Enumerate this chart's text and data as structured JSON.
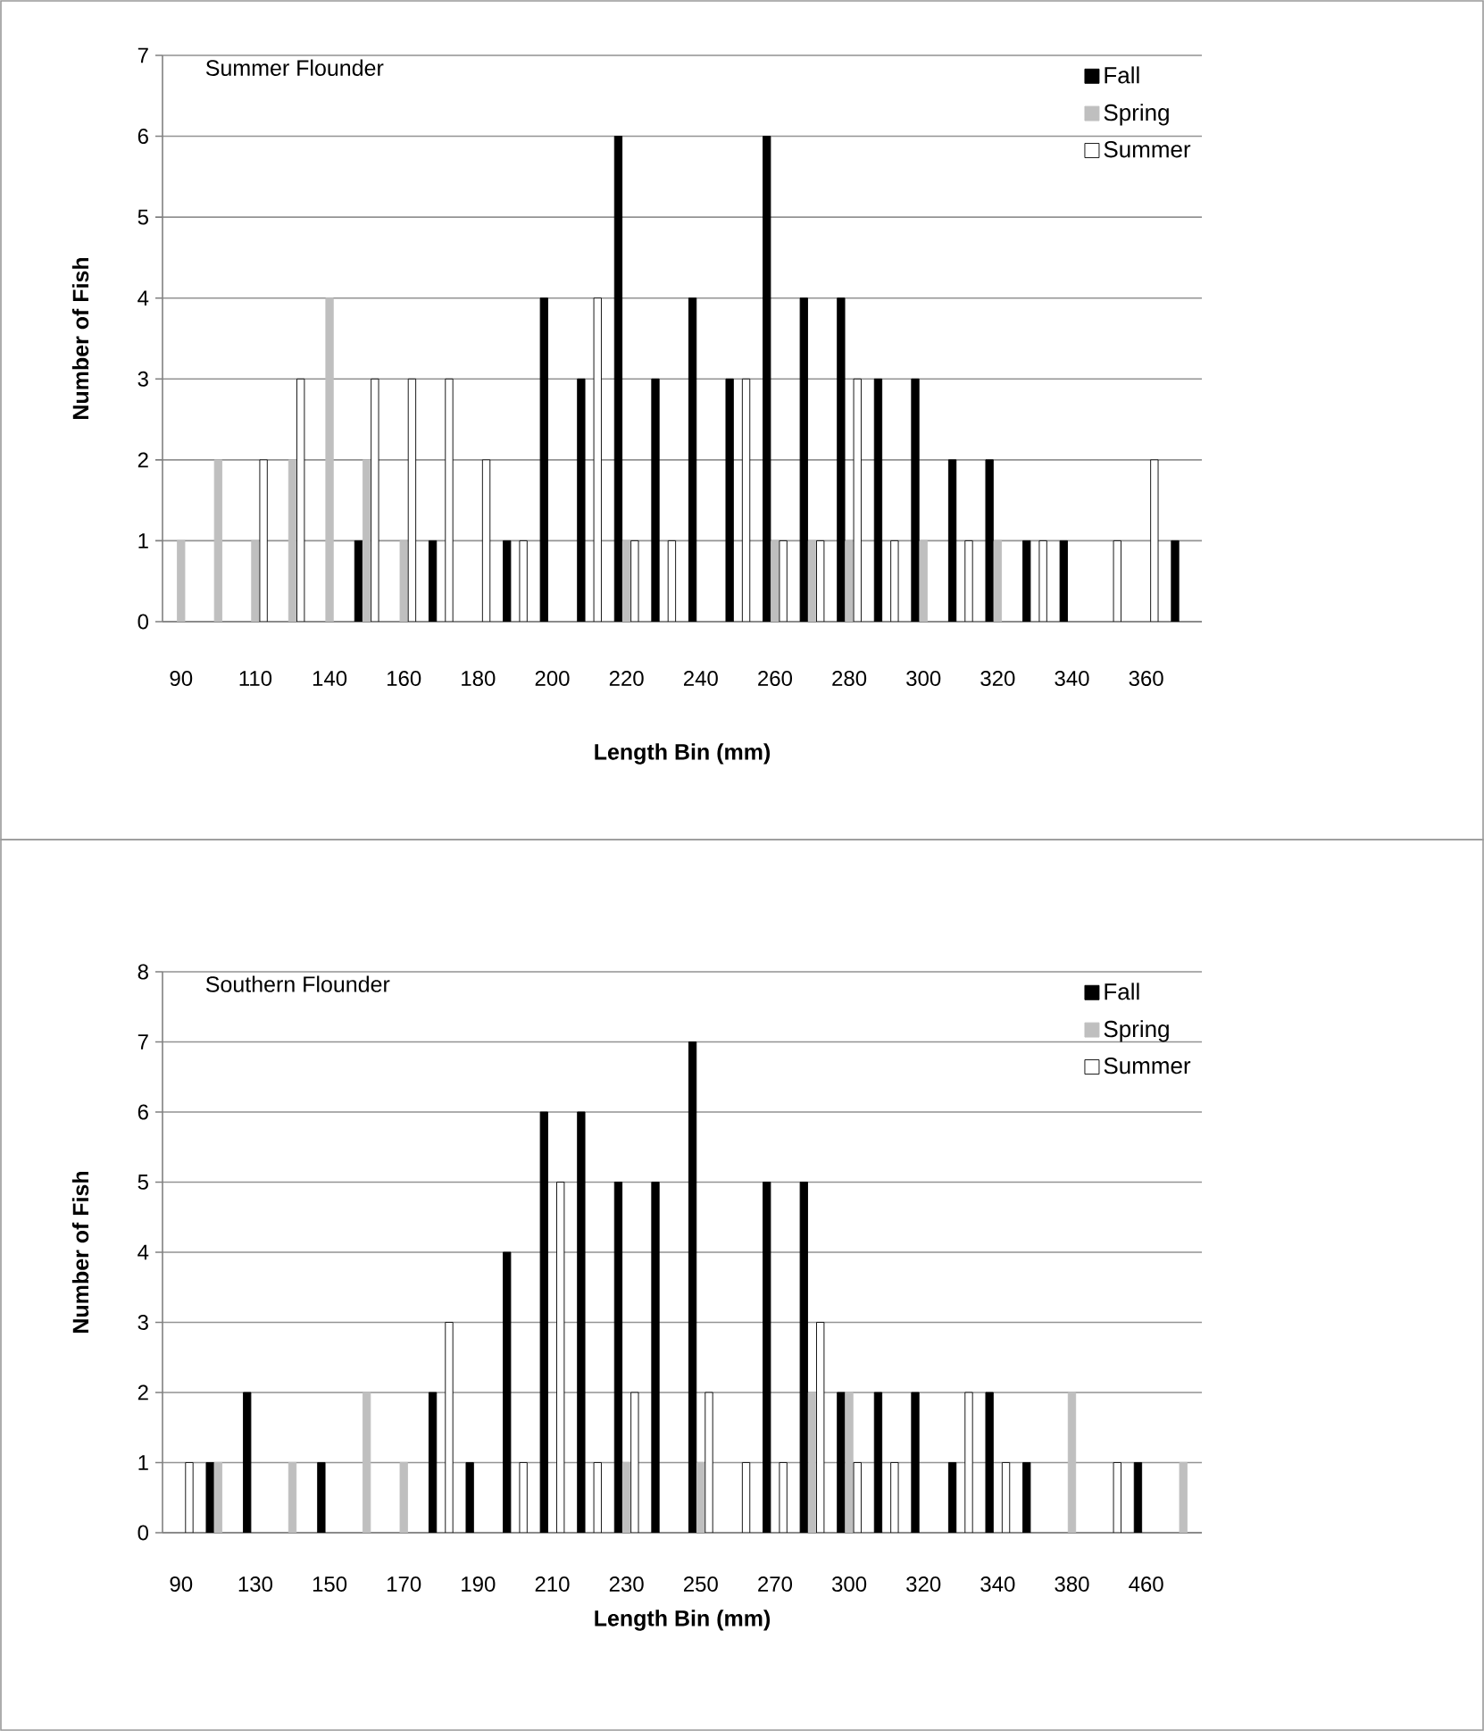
{
  "chart_data": [
    {
      "type": "bar",
      "title": "Summer Flounder",
      "xlabel": "Length Bin (mm)",
      "ylabel": "Number of Fish",
      "categories": [
        "90",
        null,
        "110",
        null,
        "140",
        null,
        "160",
        null,
        "180",
        null,
        "200",
        null,
        "220",
        null,
        "240",
        null,
        "260",
        null,
        "280",
        null,
        "300",
        null,
        "320",
        null,
        "340",
        null,
        "360",
        null
      ],
      "series": [
        {
          "name": "Fall",
          "color": "#000000",
          "values": [
            0,
            0,
            0,
            0,
            0,
            1,
            0,
            1,
            0,
            1,
            4,
            3,
            6,
            3,
            4,
            3,
            6,
            4,
            4,
            3,
            3,
            2,
            2,
            1,
            1,
            0,
            0,
            1
          ]
        },
        {
          "name": "Spring",
          "color": "#bfbfbf",
          "values": [
            1,
            2,
            1,
            2,
            4,
            2,
            1,
            0,
            0,
            0,
            0,
            0,
            1,
            0,
            0,
            0,
            1,
            1,
            1,
            0,
            1,
            0,
            1,
            0,
            0,
            0,
            0,
            0
          ]
        },
        {
          "name": "Summer",
          "color": "#ffffff",
          "values": [
            0,
            0,
            2,
            3,
            0,
            3,
            3,
            3,
            2,
            1,
            0,
            4,
            1,
            1,
            0,
            3,
            1,
            1,
            3,
            1,
            0,
            1,
            0,
            1,
            0,
            1,
            2,
            0
          ]
        }
      ],
      "ylim": [
        0,
        7
      ],
      "yticks": [
        0,
        1,
        2,
        3,
        4,
        5,
        6,
        7
      ],
      "grid": "y",
      "legend": "top right"
    },
    {
      "type": "bar",
      "title": "Southern Flounder",
      "xlabel": "Length Bin (mm)",
      "ylabel": "Number of Fish",
      "categories": [
        "90",
        null,
        "130",
        null,
        "150",
        null,
        "170",
        null,
        "190",
        null,
        "210",
        null,
        "230",
        null,
        "250",
        null,
        "270",
        null,
        "300",
        null,
        "320",
        null,
        "340",
        null,
        "380",
        null,
        "460",
        null
      ],
      "series": [
        {
          "name": "Fall",
          "color": "#000000",
          "values": [
            0,
            1,
            2,
            0,
            1,
            0,
            0,
            2,
            1,
            4,
            6,
            6,
            5,
            5,
            7,
            0,
            5,
            5,
            2,
            2,
            2,
            1,
            2,
            1,
            0,
            0,
            1,
            0
          ]
        },
        {
          "name": "Spring",
          "color": "#bfbfbf",
          "values": [
            0,
            1,
            0,
            1,
            0,
            2,
            1,
            0,
            0,
            0,
            0,
            0,
            1,
            0,
            1,
            0,
            0,
            2,
            2,
            0,
            0,
            0,
            0,
            0,
            2,
            0,
            0,
            1
          ]
        },
        {
          "name": "Summer",
          "color": "#ffffff",
          "values": [
            1,
            0,
            0,
            0,
            0,
            0,
            0,
            3,
            0,
            1,
            5,
            1,
            2,
            0,
            2,
            1,
            1,
            3,
            1,
            1,
            0,
            2,
            1,
            0,
            0,
            1,
            0,
            0
          ]
        }
      ],
      "ylim": [
        0,
        8
      ],
      "yticks": [
        0,
        1,
        2,
        3,
        4,
        5,
        6,
        7,
        8
      ],
      "grid": "y",
      "legend": "top right"
    }
  ]
}
